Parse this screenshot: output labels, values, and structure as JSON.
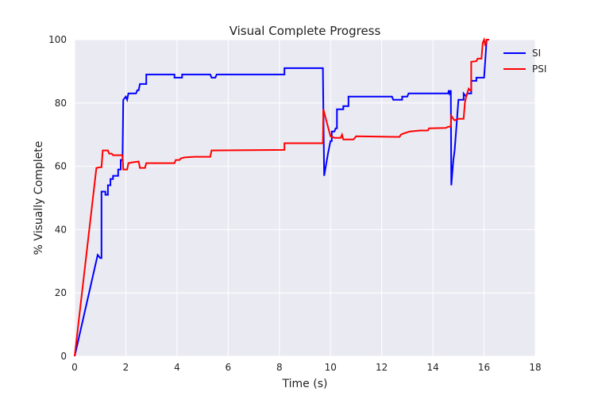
{
  "chart_data": {
    "type": "line",
    "title": "Visual Complete Progress",
    "xlabel": "Time (s)",
    "ylabel": "% Visually Complete",
    "xlim": [
      0,
      18
    ],
    "ylim": [
      0,
      100
    ],
    "xticks": [
      0,
      2,
      4,
      6,
      8,
      10,
      12,
      14,
      16,
      18
    ],
    "yticks": [
      0,
      20,
      40,
      60,
      80,
      100
    ],
    "grid": true,
    "legend": "top-right",
    "colors": {
      "background": "#eaeaf2",
      "grid": "#ffffff"
    },
    "series": [
      {
        "name": "SI",
        "color": "#0000ff",
        "points": [
          [
            0.0,
            0
          ],
          [
            0.9,
            32
          ],
          [
            1.0,
            31
          ],
          [
            1.05,
            31
          ],
          [
            1.05,
            52
          ],
          [
            1.2,
            52
          ],
          [
            1.2,
            51
          ],
          [
            1.3,
            51
          ],
          [
            1.3,
            54
          ],
          [
            1.4,
            54
          ],
          [
            1.4,
            56
          ],
          [
            1.5,
            56
          ],
          [
            1.5,
            57
          ],
          [
            1.6,
            57
          ],
          [
            1.7,
            57
          ],
          [
            1.7,
            59
          ],
          [
            1.8,
            59
          ],
          [
            1.8,
            62
          ],
          [
            1.87,
            62
          ],
          [
            1.9,
            81
          ],
          [
            2.0,
            82
          ],
          [
            2.05,
            81
          ],
          [
            2.1,
            83
          ],
          [
            2.4,
            83
          ],
          [
            2.45,
            84
          ],
          [
            2.5,
            84
          ],
          [
            2.55,
            86
          ],
          [
            2.8,
            86
          ],
          [
            2.8,
            89
          ],
          [
            3.9,
            89
          ],
          [
            3.9,
            88
          ],
          [
            4.2,
            88
          ],
          [
            4.2,
            89
          ],
          [
            5.3,
            89
          ],
          [
            5.35,
            88
          ],
          [
            5.5,
            88
          ],
          [
            5.55,
            89
          ],
          [
            8.2,
            89
          ],
          [
            8.2,
            91
          ],
          [
            9.7,
            91
          ],
          [
            9.75,
            57
          ],
          [
            9.9,
            64
          ],
          [
            10.0,
            68
          ],
          [
            10.05,
            68
          ],
          [
            10.05,
            71
          ],
          [
            10.15,
            71
          ],
          [
            10.2,
            72
          ],
          [
            10.25,
            72
          ],
          [
            10.25,
            78
          ],
          [
            10.5,
            78
          ],
          [
            10.5,
            79
          ],
          [
            10.7,
            79
          ],
          [
            10.7,
            82
          ],
          [
            12.4,
            82
          ],
          [
            12.45,
            81
          ],
          [
            12.8,
            81
          ],
          [
            12.8,
            82
          ],
          [
            13.0,
            82
          ],
          [
            13.05,
            83
          ],
          [
            14.6,
            83
          ],
          [
            14.62,
            84
          ],
          [
            14.65,
            83
          ],
          [
            14.7,
            84
          ],
          [
            14.72,
            54
          ],
          [
            14.8,
            62
          ],
          [
            14.85,
            65
          ],
          [
            15.0,
            81
          ],
          [
            15.2,
            81
          ],
          [
            15.2,
            83
          ],
          [
            15.3,
            82
          ],
          [
            15.35,
            83
          ],
          [
            15.5,
            83
          ],
          [
            15.5,
            87
          ],
          [
            15.7,
            87
          ],
          [
            15.7,
            88
          ],
          [
            16.0,
            88
          ],
          [
            16.1,
            100
          ],
          [
            16.2,
            100
          ]
        ]
      },
      {
        "name": "PSI",
        "color": "#ff0000",
        "points": [
          [
            0.0,
            0
          ],
          [
            0.85,
            59.5
          ],
          [
            1.0,
            59.7
          ],
          [
            1.05,
            59.7
          ],
          [
            1.1,
            65
          ],
          [
            1.3,
            65
          ],
          [
            1.35,
            64
          ],
          [
            1.45,
            64
          ],
          [
            1.5,
            63.5
          ],
          [
            1.87,
            63.5
          ],
          [
            1.9,
            59
          ],
          [
            2.05,
            59
          ],
          [
            2.1,
            61
          ],
          [
            2.3,
            61.3
          ],
          [
            2.5,
            61.5
          ],
          [
            2.55,
            59.5
          ],
          [
            2.75,
            59.5
          ],
          [
            2.8,
            61
          ],
          [
            3.5,
            61
          ],
          [
            3.9,
            61
          ],
          [
            3.95,
            62
          ],
          [
            4.1,
            62
          ],
          [
            4.15,
            62.5
          ],
          [
            4.3,
            62.8
          ],
          [
            4.7,
            63
          ],
          [
            5.0,
            63
          ],
          [
            5.3,
            63
          ],
          [
            5.35,
            65
          ],
          [
            8.2,
            65.2
          ],
          [
            8.2,
            67.3
          ],
          [
            9.7,
            67.3
          ],
          [
            9.72,
            78
          ],
          [
            9.85,
            74
          ],
          [
            10.0,
            69.5
          ],
          [
            10.15,
            69
          ],
          [
            10.4,
            69
          ],
          [
            10.45,
            70
          ],
          [
            10.5,
            68.5
          ],
          [
            10.9,
            68.5
          ],
          [
            11.0,
            69.5
          ],
          [
            12.5,
            69.3
          ],
          [
            12.7,
            69.3
          ],
          [
            12.75,
            70
          ],
          [
            12.9,
            70.5
          ],
          [
            13.1,
            71
          ],
          [
            13.5,
            71.3
          ],
          [
            13.8,
            71.3
          ],
          [
            13.85,
            72
          ],
          [
            14.5,
            72.1
          ],
          [
            14.6,
            72.5
          ],
          [
            14.7,
            72.5
          ],
          [
            14.72,
            76
          ],
          [
            14.8,
            75
          ],
          [
            14.85,
            74.5
          ],
          [
            15.0,
            75
          ],
          [
            15.2,
            75
          ],
          [
            15.25,
            80
          ],
          [
            15.3,
            82
          ],
          [
            15.4,
            84.5
          ],
          [
            15.45,
            84
          ],
          [
            15.5,
            84
          ],
          [
            15.5,
            93
          ],
          [
            15.7,
            93.2
          ],
          [
            15.75,
            94
          ],
          [
            15.9,
            94
          ],
          [
            15.95,
            99
          ],
          [
            16.0,
            100
          ],
          [
            16.05,
            98
          ],
          [
            16.1,
            100
          ],
          [
            16.2,
            100
          ]
        ]
      }
    ]
  }
}
